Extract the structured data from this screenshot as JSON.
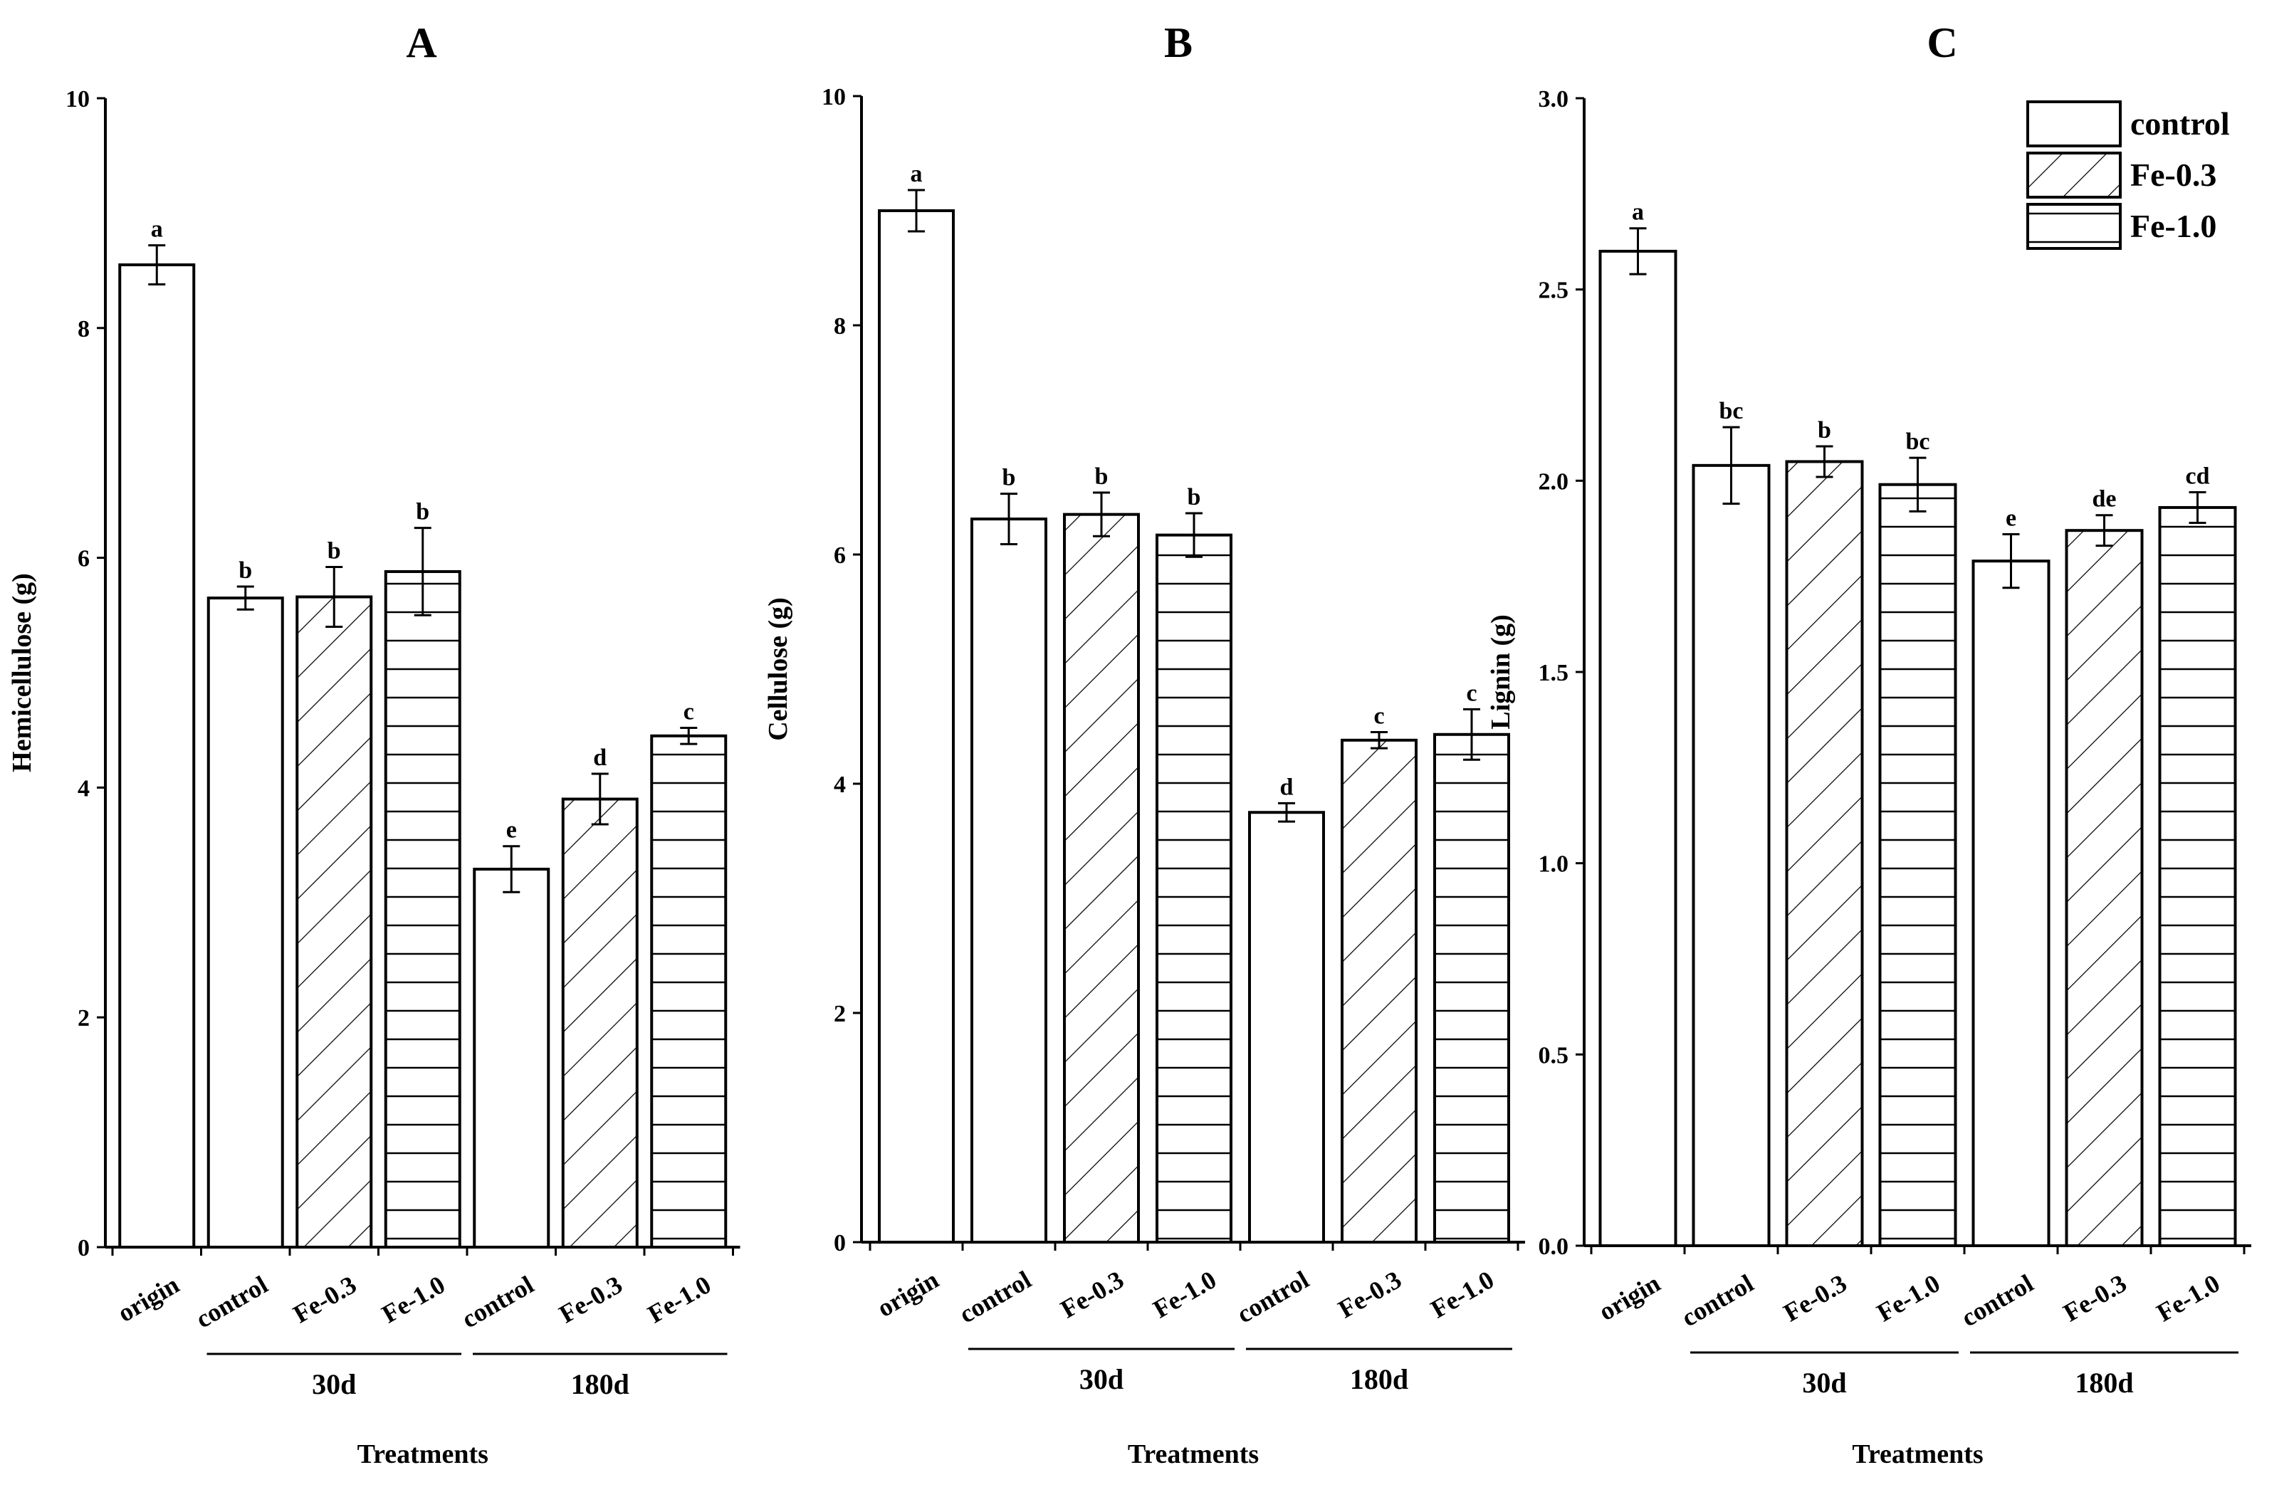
{
  "chart_data": [
    {
      "type": "bar",
      "panel": "A",
      "ylabel": "Hemicellulose (g)",
      "xlabel": "Treatments",
      "ylim": [
        0,
        10
      ],
      "yticks": [
        "0",
        "2",
        "4",
        "6",
        "8",
        "10"
      ],
      "groups": [
        "30d",
        "180d"
      ],
      "bars": [
        {
          "category": "origin",
          "series": "control",
          "value": 8.55,
          "error": 0.17,
          "sig": "a"
        },
        {
          "category": "control",
          "group": "30d",
          "series": "control",
          "value": 5.65,
          "error": 0.1,
          "sig": "b"
        },
        {
          "category": "Fe-0.3",
          "group": "30d",
          "series": "Fe-0.3",
          "value": 5.66,
          "error": 0.26,
          "sig": "b"
        },
        {
          "category": "Fe-1.0",
          "group": "30d",
          "series": "Fe-1.0",
          "value": 5.88,
          "error": 0.38,
          "sig": "b"
        },
        {
          "category": "control",
          "group": "180d",
          "series": "control",
          "value": 3.29,
          "error": 0.2,
          "sig": "e"
        },
        {
          "category": "Fe-0.3",
          "group": "180d",
          "series": "Fe-0.3",
          "value": 3.9,
          "error": 0.22,
          "sig": "d"
        },
        {
          "category": "Fe-1.0",
          "group": "180d",
          "series": "Fe-1.0",
          "value": 4.45,
          "error": 0.07,
          "sig": "c"
        }
      ]
    },
    {
      "type": "bar",
      "panel": "B",
      "ylabel": "Cellulose (g)",
      "xlabel": "Treatments",
      "ylim": [
        0,
        10
      ],
      "yticks": [
        "0",
        "2",
        "4",
        "6",
        "8",
        "10"
      ],
      "groups": [
        "30d",
        "180d"
      ],
      "bars": [
        {
          "category": "origin",
          "series": "control",
          "value": 9.0,
          "error": 0.18,
          "sig": "a"
        },
        {
          "category": "control",
          "group": "30d",
          "series": "control",
          "value": 6.31,
          "error": 0.22,
          "sig": "b"
        },
        {
          "category": "Fe-0.3",
          "group": "30d",
          "series": "Fe-0.3",
          "value": 6.35,
          "error": 0.19,
          "sig": "b"
        },
        {
          "category": "Fe-1.0",
          "group": "30d",
          "series": "Fe-1.0",
          "value": 6.17,
          "error": 0.19,
          "sig": "b"
        },
        {
          "category": "control",
          "group": "180d",
          "series": "control",
          "value": 3.75,
          "error": 0.08,
          "sig": "d"
        },
        {
          "category": "Fe-0.3",
          "group": "180d",
          "series": "Fe-0.3",
          "value": 4.38,
          "error": 0.07,
          "sig": "c"
        },
        {
          "category": "Fe-1.0",
          "group": "180d",
          "series": "Fe-1.0",
          "value": 4.43,
          "error": 0.22,
          "sig": "c"
        }
      ]
    },
    {
      "type": "bar",
      "panel": "C",
      "ylabel": "Lignin (g)",
      "xlabel": "Treatments",
      "ylim": [
        0,
        3
      ],
      "yticks": [
        "0.0",
        "0.5",
        "1.0",
        "1.5",
        "2.0",
        "2.5",
        "3.0"
      ],
      "groups": [
        "30d",
        "180d"
      ],
      "legend": [
        "control",
        "Fe-0.3",
        "Fe-1.0"
      ],
      "legend_position": "top-right",
      "bars": [
        {
          "category": "origin",
          "series": "control",
          "value": 2.6,
          "error": 0.06,
          "sig": "a"
        },
        {
          "category": "control",
          "group": "30d",
          "series": "control",
          "value": 2.04,
          "error": 0.1,
          "sig": "bc"
        },
        {
          "category": "Fe-0.3",
          "group": "30d",
          "series": "Fe-0.3",
          "value": 2.05,
          "error": 0.04,
          "sig": "b"
        },
        {
          "category": "Fe-1.0",
          "group": "30d",
          "series": "Fe-1.0",
          "value": 1.99,
          "error": 0.07,
          "sig": "bc"
        },
        {
          "category": "control",
          "group": "180d",
          "series": "control",
          "value": 1.79,
          "error": 0.07,
          "sig": "e"
        },
        {
          "category": "Fe-0.3",
          "group": "180d",
          "series": "Fe-0.3",
          "value": 1.87,
          "error": 0.04,
          "sig": "de"
        },
        {
          "category": "Fe-1.0",
          "group": "180d",
          "series": "Fe-1.0",
          "value": 1.93,
          "error": 0.04,
          "sig": "cd"
        }
      ]
    }
  ]
}
